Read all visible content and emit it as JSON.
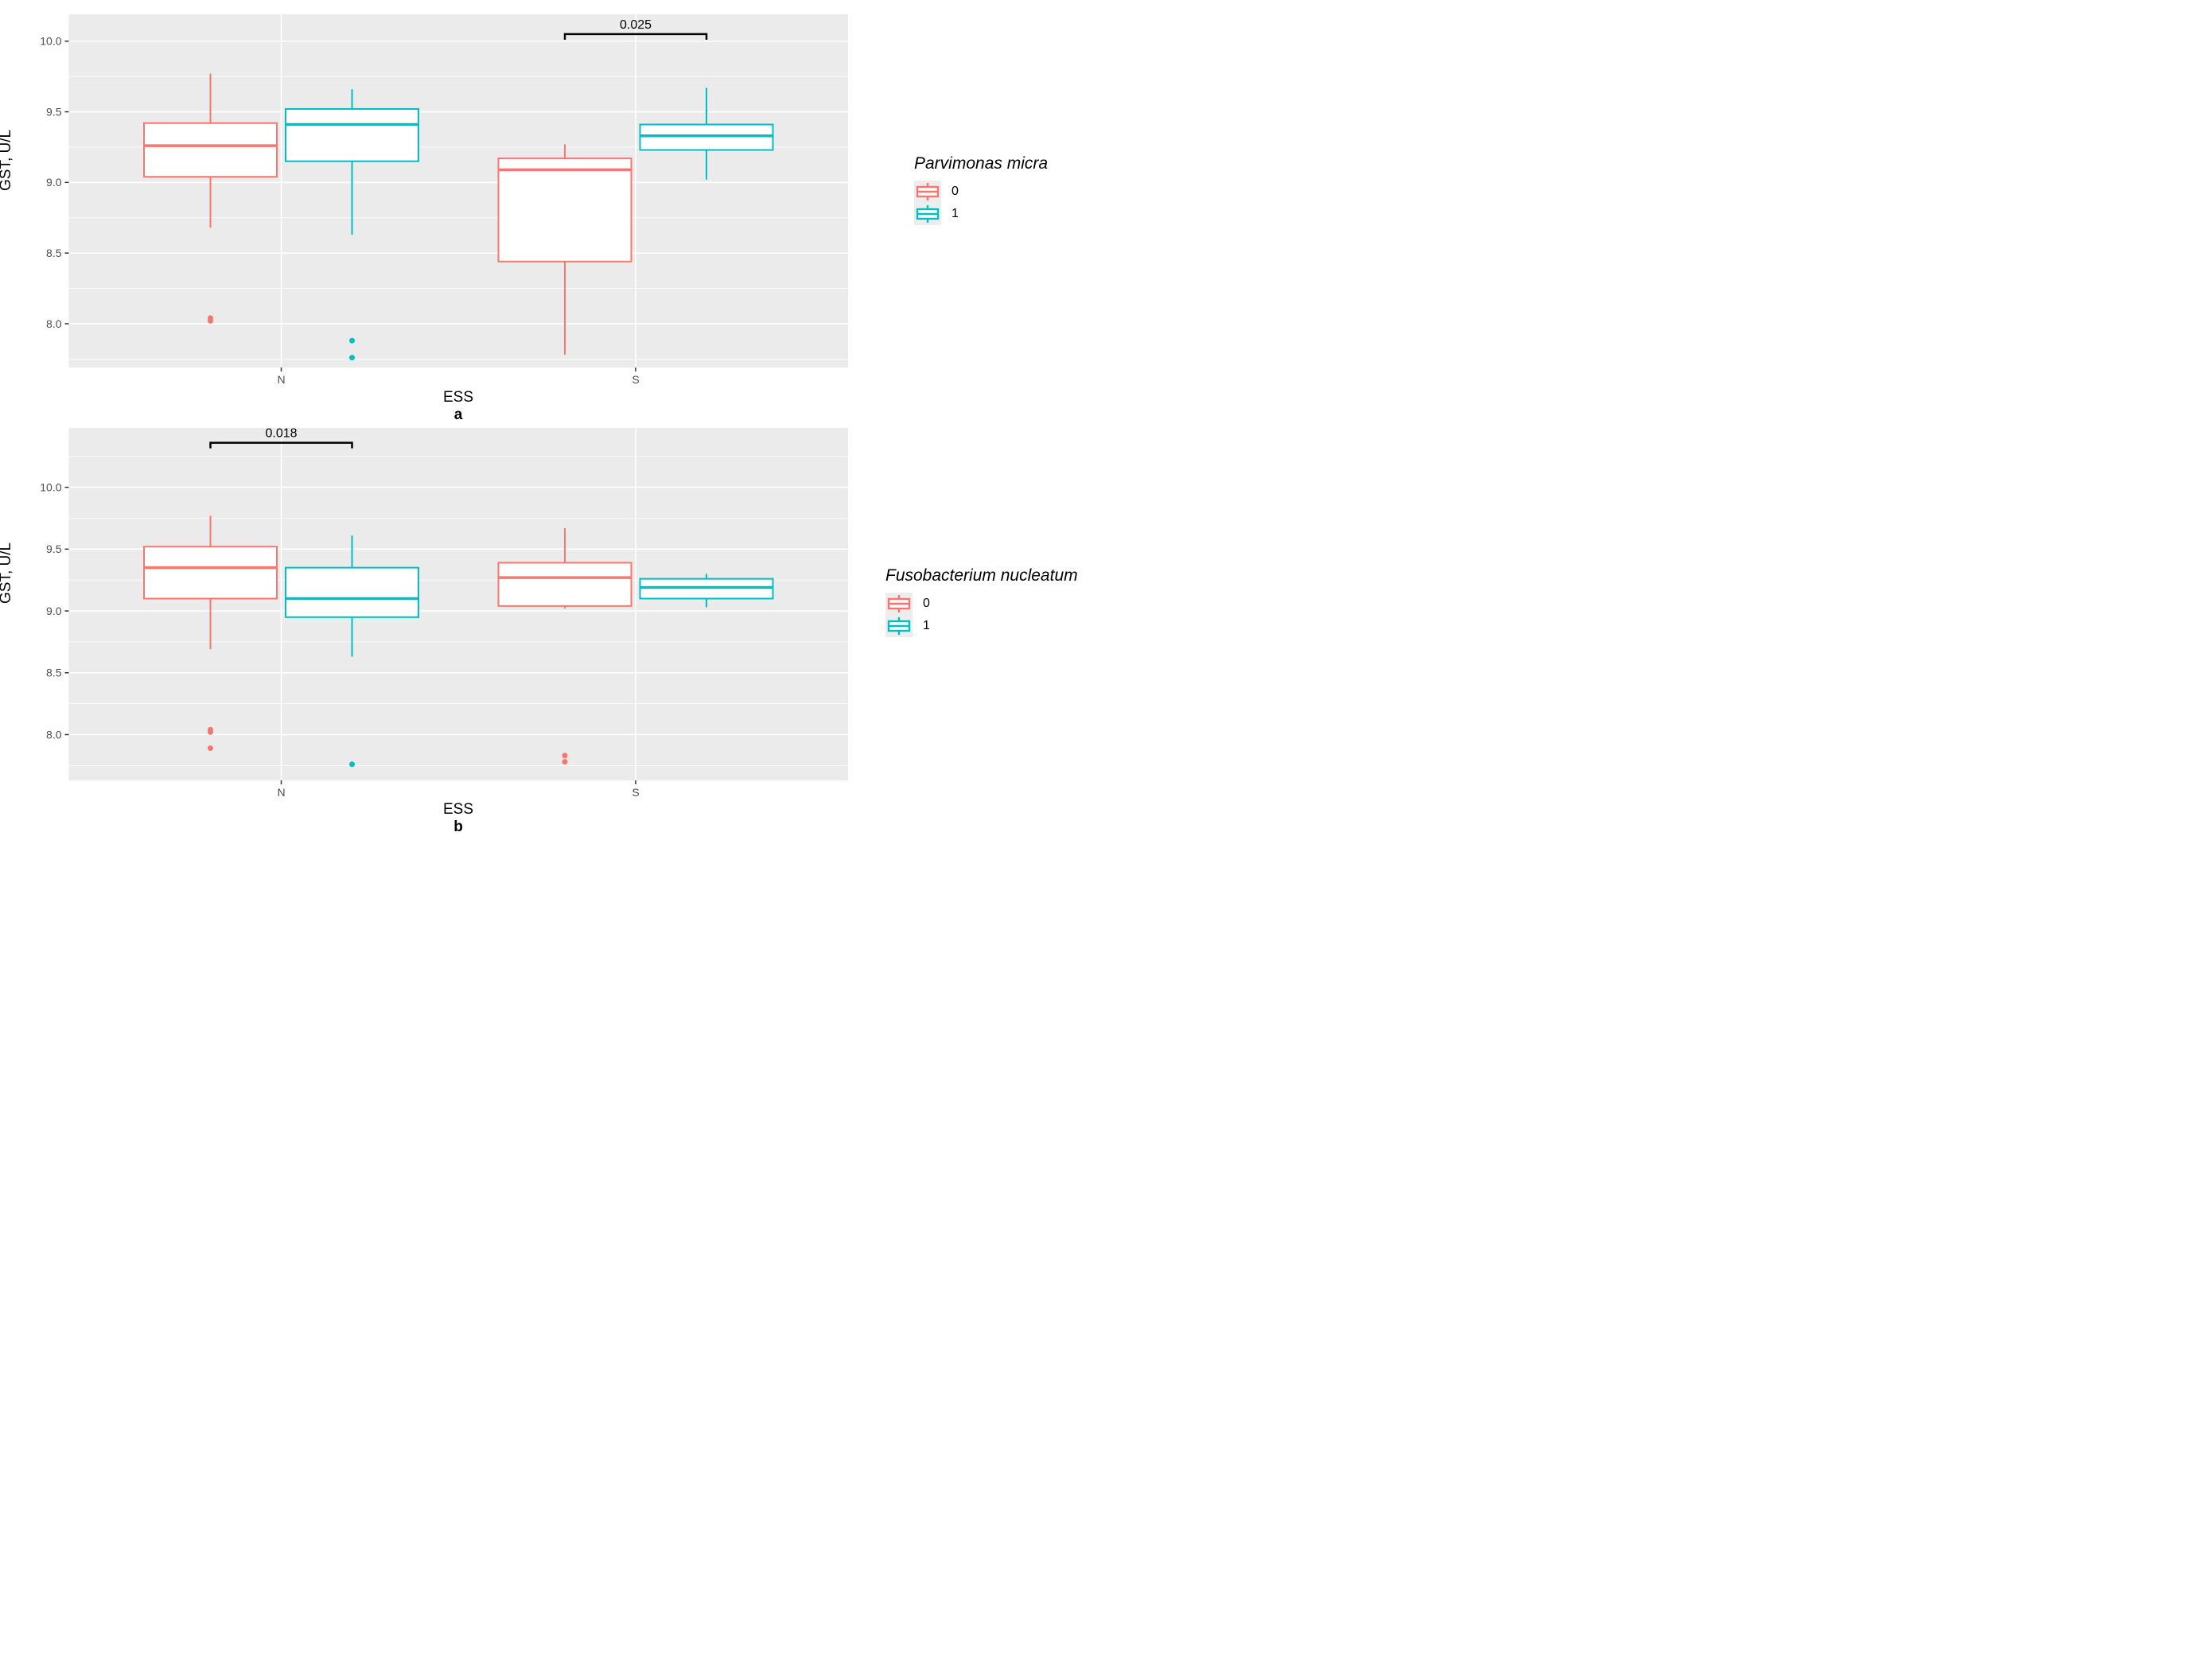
{
  "figure": {
    "background": "#FFFFFF",
    "y_axis_label": "GST, U/L",
    "x_axis_label": "ESS"
  },
  "colors": {
    "series0": "#F8766D",
    "series1": "#00BFC4",
    "panel_bg": "#EBEBEB",
    "grid": "#FFFFFF",
    "tick_label": "#4D4D4D",
    "tick_mark": "#333333",
    "text": "#000000",
    "legend_key_bg": "#EDEDED"
  },
  "chart_data": [
    {
      "type": "boxplot",
      "panel_tag": "a",
      "title": "",
      "xlabel": "ESS",
      "ylabel": "GST, U/L",
      "legend_title": "Parvimonas micra",
      "legend_position": "right",
      "legend_entries": [
        {
          "label": "0",
          "color_key": "series0"
        },
        {
          "label": "1",
          "color_key": "series1"
        }
      ],
      "categories": [
        "N",
        "S"
      ],
      "yticks": [
        8.0,
        8.5,
        9.0,
        9.5,
        10.0
      ],
      "ytick_labels": [
        "8.0",
        "8.5",
        "9.0",
        "9.5",
        "10.0"
      ],
      "minor_step": 0.25,
      "ylim": [
        7.69,
        10.19
      ],
      "grid": true,
      "series": [
        {
          "name": "0",
          "color_key": "series0",
          "boxes": [
            {
              "category": "N",
              "whisker_low": 8.68,
              "q1": 9.04,
              "median": 9.26,
              "q3": 9.42,
              "whisker_high": 9.77,
              "outliers": [
                8.04,
                8.02
              ]
            },
            {
              "category": "S",
              "whisker_low": 7.78,
              "q1": 8.44,
              "median": 9.09,
              "q3": 9.17,
              "whisker_high": 9.27,
              "outliers": []
            }
          ]
        },
        {
          "name": "1",
          "color_key": "series1",
          "boxes": [
            {
              "category": "N",
              "whisker_low": 8.63,
              "q1": 9.15,
              "median": 9.41,
              "q3": 9.52,
              "whisker_high": 9.66,
              "outliers": [
                7.88,
                7.76
              ]
            },
            {
              "category": "S",
              "whisker_low": 9.02,
              "q1": 9.23,
              "median": 9.33,
              "q3": 9.41,
              "whisker_high": 9.67,
              "outliers": []
            }
          ]
        }
      ],
      "significance": {
        "label": "0.025",
        "category": "S",
        "between": [
          "0",
          "1"
        ],
        "y": 10.05
      }
    },
    {
      "type": "boxplot",
      "panel_tag": "b",
      "title": "",
      "xlabel": "ESS",
      "ylabel": "GST, U/L",
      "legend_title": "Fusobacterium nucleatum",
      "legend_position": "right",
      "legend_entries": [
        {
          "label": "0",
          "color_key": "series0"
        },
        {
          "label": "1",
          "color_key": "series1"
        }
      ],
      "categories": [
        "N",
        "S"
      ],
      "yticks": [
        8.0,
        8.5,
        9.0,
        9.5,
        10.0
      ],
      "ytick_labels": [
        "8.0",
        "8.5",
        "9.0",
        "9.5",
        "10.0"
      ],
      "minor_step": 0.25,
      "ylim": [
        7.63,
        10.48
      ],
      "grid": true,
      "series": [
        {
          "name": "0",
          "color_key": "series0",
          "boxes": [
            {
              "category": "N",
              "whisker_low": 8.69,
              "q1": 9.1,
              "median": 9.35,
              "q3": 9.52,
              "whisker_high": 9.77,
              "outliers": [
                8.04,
                8.02,
                7.89
              ]
            },
            {
              "category": "S",
              "whisker_low": 9.02,
              "q1": 9.04,
              "median": 9.27,
              "q3": 9.39,
              "whisker_high": 9.67,
              "outliers": [
                7.83,
                7.78
              ]
            }
          ]
        },
        {
          "name": "1",
          "color_key": "series1",
          "boxes": [
            {
              "category": "N",
              "whisker_low": 8.63,
              "q1": 8.95,
              "median": 9.1,
              "q3": 9.35,
              "whisker_high": 9.61,
              "outliers": [
                7.76
              ]
            },
            {
              "category": "S",
              "whisker_low": 9.03,
              "q1": 9.1,
              "median": 9.19,
              "q3": 9.26,
              "whisker_high": 9.3,
              "outliers": []
            }
          ]
        }
      ],
      "significance": {
        "label": "0.018",
        "category": "N",
        "between": [
          "0",
          "1"
        ],
        "y": 10.36
      }
    }
  ]
}
